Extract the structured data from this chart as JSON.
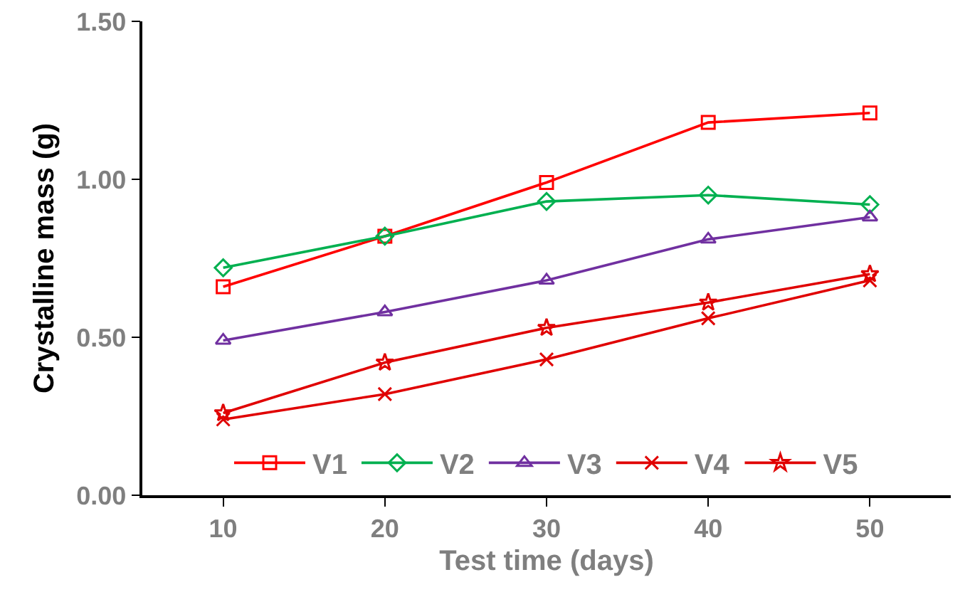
{
  "chart_data": {
    "type": "line",
    "xlabel": "Test time (days)",
    "ylabel": "Crystalline mass (g)",
    "x": [
      10,
      20,
      30,
      40,
      50
    ],
    "series": [
      {
        "name": "V1",
        "color": "#ff0000",
        "marker": "square",
        "values": [
          0.66,
          0.82,
          0.99,
          1.18,
          1.21
        ]
      },
      {
        "name": "V2",
        "color": "#00b050",
        "marker": "diamond",
        "values": [
          0.72,
          0.82,
          0.93,
          0.95,
          0.92
        ]
      },
      {
        "name": "V3",
        "color": "#7030a0",
        "marker": "triangle",
        "values": [
          0.49,
          0.58,
          0.68,
          0.81,
          0.88
        ]
      },
      {
        "name": "V4",
        "color": "#e00000",
        "marker": "cross",
        "values": [
          0.24,
          0.32,
          0.43,
          0.56,
          0.68
        ]
      },
      {
        "name": "V5",
        "color": "#e00000",
        "marker": "star",
        "values": [
          0.26,
          0.42,
          0.53,
          0.61,
          0.7
        ]
      }
    ],
    "xlim": [
      5,
      55
    ],
    "xticks": [
      10,
      20,
      30,
      40,
      50
    ],
    "ylim": [
      0,
      1.5
    ],
    "yticks": [
      {
        "value": 0,
        "label": "0.00"
      },
      {
        "value": 0.5,
        "label": "0.50"
      },
      {
        "value": 1,
        "label": "1.00"
      },
      {
        "value": 1.5,
        "label": "1.50"
      }
    ],
    "grid": false,
    "legend": "bottom",
    "line_style": "solid"
  }
}
